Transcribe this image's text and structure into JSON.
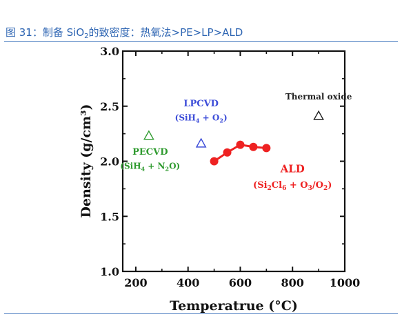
{
  "header": {
    "figure_no": "图 31：",
    "title_pre": "制备 SiO",
    "title_sub": "2",
    "title_post": "的致密度：热氧法>PE>LP>ALD"
  },
  "chart_data": {
    "type": "scatter",
    "title": "",
    "xlabel": "Temperatrue (°C)",
    "ylabel": "Density (g/cm³)",
    "xlim": [
      150,
      1000
    ],
    "ylim": [
      1.0,
      3.0
    ],
    "x_ticks": [
      "200",
      "400",
      "600",
      "800",
      "1000"
    ],
    "y_ticks": [
      "1.0",
      "1.5",
      "2.0",
      "2.5",
      "3.0"
    ],
    "grid": false,
    "series": [
      {
        "name": "ALD (Si2Cl6 + O3/O2)",
        "marker": "circle-filled",
        "line": true,
        "color": "#ee2222",
        "x": [
          500,
          550,
          600,
          650,
          700
        ],
        "y": [
          2.0,
          2.08,
          2.15,
          2.13,
          2.12
        ]
      },
      {
        "name": "PECVD (SiH4 + N2O)",
        "marker": "triangle-open",
        "line": false,
        "color": "#2e9a2e",
        "x": [
          250
        ],
        "y": [
          2.23
        ]
      },
      {
        "name": "LPCVD (SiH4 + O2)",
        "marker": "triangle-open",
        "line": false,
        "color": "#3b4bd8",
        "x": [
          450
        ],
        "y": [
          2.16
        ]
      },
      {
        "name": "Thermal oxide",
        "marker": "triangle-open",
        "line": false,
        "color": "#222222",
        "x": [
          900
        ],
        "y": [
          2.41
        ]
      }
    ],
    "annotations": {
      "thermal": {
        "label": "Thermal oxide",
        "x": 900,
        "y": 2.56
      },
      "lpcvd": {
        "label": "LPCVD",
        "sub_pre": "(SiH",
        "sub_a": "4",
        "mid": " + O",
        "sub_b": "2",
        "post": ")",
        "x": 450,
        "y": 2.5,
        "y2": 2.37
      },
      "pecvd": {
        "label": "PECVD",
        "sub_pre": "(SiH",
        "sub_a": "4",
        "mid": " + N",
        "sub_b": "2",
        "post": "O)",
        "x": 255,
        "y": 2.06,
        "y2": 1.93
      },
      "ald": {
        "label": "ALD",
        "p1": "(Si",
        "s1": "2",
        "p2": "Cl",
        "s2": "6",
        "p3": " + O",
        "s3": "3",
        "p4": "/O",
        "s4": "2",
        "p5": ")",
        "x": 800,
        "y": 1.9,
        "y2": 1.76
      }
    }
  }
}
